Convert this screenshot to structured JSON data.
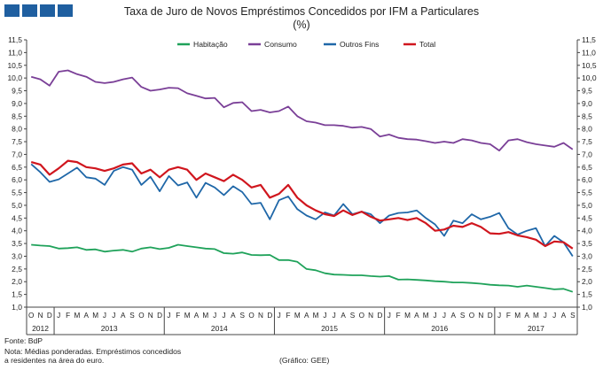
{
  "title": "Taxa de Juro de Novos Empréstimos Concedidos por IFM a Particulares",
  "subtitle": "(%)",
  "footer": {
    "source": "Fonte: BdP",
    "note_line1": "Nota: Médias ponderadas.  Empréstimos concedidos",
    "note_line2": "a residentes na área do euro.",
    "credit": "(Gráfico:  GEE)"
  },
  "chart_data": {
    "type": "line",
    "title": "Taxa de Juro de Novos Empréstimos Concedidos por IFM a Particulares",
    "subtitle": "(%)",
    "ylim": [
      1.0,
      11.5
    ],
    "y_ticks": [
      "1,0",
      "1,5",
      "2,0",
      "2,5",
      "3,0",
      "3,5",
      "4,0",
      "4,5",
      "5,0",
      "5,5",
      "6,0",
      "6,5",
      "7,0",
      "7,5",
      "8,0",
      "8,5",
      "9,0",
      "9,5",
      "10,0",
      "10,5",
      "11,0",
      "11,5"
    ],
    "grid": false,
    "legend_position": "top",
    "x": [
      "O",
      "N",
      "D",
      "J",
      "F",
      "M",
      "A",
      "M",
      "J",
      "J",
      "A",
      "S",
      "O",
      "N",
      "D",
      "J",
      "F",
      "M",
      "A",
      "M",
      "J",
      "J",
      "A",
      "S",
      "O",
      "N",
      "D",
      "J",
      "F",
      "M",
      "A",
      "M",
      "J",
      "J",
      "A",
      "S",
      "O",
      "N",
      "D",
      "J",
      "F",
      "M",
      "A",
      "M",
      "J",
      "J",
      "A",
      "S",
      "O",
      "N",
      "D",
      "J",
      "F",
      "M",
      "A",
      "M",
      "J",
      "J",
      "A",
      "S"
    ],
    "years": [
      {
        "label": "2012",
        "start": 0,
        "end": 2
      },
      {
        "label": "2013",
        "start": 3,
        "end": 14
      },
      {
        "label": "2014",
        "start": 15,
        "end": 26
      },
      {
        "label": "2015",
        "start": 27,
        "end": 38
      },
      {
        "label": "2016",
        "start": 39,
        "end": 50
      },
      {
        "label": "2017",
        "start": 51,
        "end": 59
      }
    ],
    "series": [
      {
        "name": "Habitação",
        "color": "#1fa25a",
        "values": [
          3.45,
          3.42,
          3.4,
          3.3,
          3.32,
          3.35,
          3.25,
          3.27,
          3.18,
          3.22,
          3.25,
          3.18,
          3.3,
          3.35,
          3.28,
          3.33,
          3.45,
          3.4,
          3.35,
          3.3,
          3.28,
          3.12,
          3.1,
          3.15,
          3.05,
          3.04,
          3.05,
          2.85,
          2.85,
          2.78,
          2.5,
          2.45,
          2.33,
          2.28,
          2.27,
          2.25,
          2.25,
          2.22,
          2.2,
          2.22,
          2.08,
          2.09,
          2.07,
          2.05,
          2.02,
          2.0,
          1.97,
          1.97,
          1.95,
          1.92,
          1.88,
          1.86,
          1.85,
          1.8,
          1.85,
          1.8,
          1.75,
          1.7,
          1.72,
          1.6
        ]
      },
      {
        "name": "Consumo",
        "color": "#7a3f97",
        "values": [
          10.05,
          9.95,
          9.7,
          10.25,
          10.3,
          10.15,
          10.05,
          9.85,
          9.8,
          9.85,
          9.95,
          10.02,
          9.65,
          9.5,
          9.55,
          9.62,
          9.6,
          9.4,
          9.3,
          9.2,
          9.22,
          8.85,
          9.02,
          9.05,
          8.7,
          8.75,
          8.65,
          8.7,
          8.88,
          8.5,
          8.3,
          8.25,
          8.15,
          8.15,
          8.12,
          8.05,
          8.08,
          8.0,
          7.7,
          7.78,
          7.65,
          7.6,
          7.58,
          7.52,
          7.45,
          7.5,
          7.45,
          7.6,
          7.55,
          7.45,
          7.4,
          7.15,
          7.55,
          7.6,
          7.48,
          7.4,
          7.35,
          7.3,
          7.45,
          7.2
        ]
      },
      {
        "name": "Outros Fins",
        "color": "#1f67a8",
        "values": [
          6.62,
          6.3,
          5.92,
          6.02,
          6.25,
          6.48,
          6.1,
          6.05,
          5.8,
          6.35,
          6.5,
          6.4,
          5.8,
          6.12,
          5.55,
          6.15,
          5.78,
          5.9,
          5.3,
          5.88,
          5.7,
          5.4,
          5.75,
          5.52,
          5.05,
          5.1,
          4.45,
          5.2,
          5.35,
          4.85,
          4.6,
          4.45,
          4.72,
          4.6,
          5.05,
          4.65,
          4.75,
          4.65,
          4.3,
          4.6,
          4.7,
          4.72,
          4.8,
          4.5,
          4.25,
          3.8,
          4.4,
          4.3,
          4.65,
          4.45,
          4.55,
          4.7,
          4.1,
          3.85,
          4.0,
          4.1,
          3.4,
          3.8,
          3.55,
          3.0
        ]
      },
      {
        "name": "Total",
        "color": "#d0161e",
        "values": [
          6.7,
          6.6,
          6.2,
          6.45,
          6.75,
          6.7,
          6.5,
          6.45,
          6.35,
          6.45,
          6.6,
          6.65,
          6.25,
          6.4,
          6.1,
          6.4,
          6.5,
          6.4,
          6.0,
          6.25,
          6.1,
          5.95,
          6.2,
          6.0,
          5.7,
          5.8,
          5.3,
          5.45,
          5.8,
          5.3,
          5.0,
          4.8,
          4.65,
          4.58,
          4.8,
          4.62,
          4.75,
          4.55,
          4.4,
          4.45,
          4.5,
          4.42,
          4.5,
          4.3,
          4.0,
          4.05,
          4.2,
          4.15,
          4.3,
          4.15,
          3.9,
          3.88,
          3.95,
          3.82,
          3.75,
          3.65,
          3.4,
          3.58,
          3.55,
          3.3
        ]
      }
    ]
  }
}
